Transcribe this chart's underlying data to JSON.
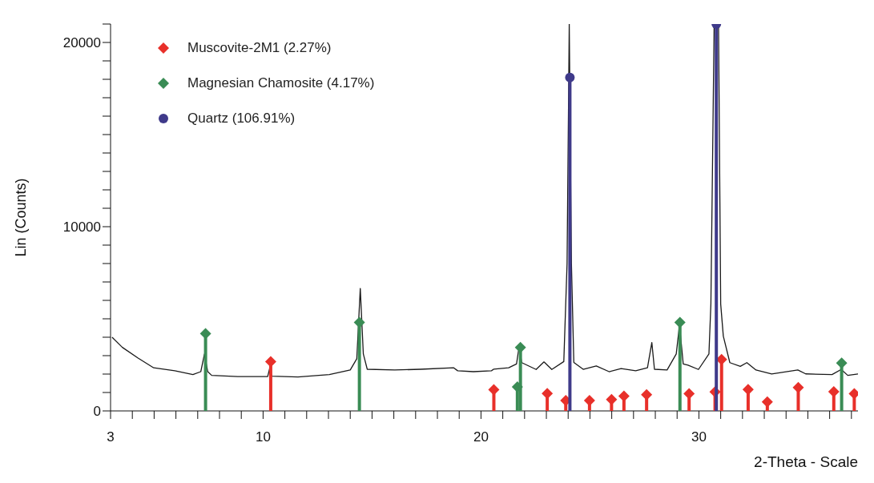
{
  "chart_data": {
    "type": "lollipop",
    "xlabel": "2-Theta - Scale",
    "ylabel": "Lin (Counts)",
    "xlim": [
      3,
      37.3
    ],
    "ylim": [
      0,
      21000
    ],
    "xticks": [
      3,
      {
        "value": 4,
        "label": null
      },
      {
        "value": 5,
        "label": null
      },
      {
        "value": 6,
        "label": null
      },
      {
        "value": 7,
        "label": null
      },
      {
        "value": 8,
        "label": null
      },
      {
        "value": 9,
        "label": null
      },
      10,
      {
        "value": 11,
        "label": null
      },
      {
        "value": 12,
        "label": null
      },
      {
        "value": 13,
        "label": null
      },
      {
        "value": 14,
        "label": null
      },
      {
        "value": 15,
        "label": null
      },
      {
        "value": 16,
        "label": null
      },
      {
        "value": 17,
        "label": null
      },
      {
        "value": 18,
        "label": null
      },
      {
        "value": 19,
        "label": null
      },
      20,
      {
        "value": 21,
        "label": null
      },
      {
        "value": 22,
        "label": null
      },
      {
        "value": 23,
        "label": null
      },
      {
        "value": 24,
        "label": null
      },
      {
        "value": 25,
        "label": null
      },
      {
        "value": 26,
        "label": null
      },
      {
        "value": 27,
        "label": null
      },
      {
        "value": 28,
        "label": null
      },
      {
        "value": 29,
        "label": null
      },
      30,
      {
        "value": 31,
        "label": null
      },
      {
        "value": 32,
        "label": null
      },
      {
        "value": 33,
        "label": null
      },
      {
        "value": 34,
        "label": null
      },
      {
        "value": 35,
        "label": null
      },
      {
        "value": 36,
        "label": null
      },
      {
        "value": 37,
        "label": null
      }
    ],
    "yticks": [
      0,
      {
        "value": 1000,
        "label": null
      },
      {
        "value": 2000,
        "label": null
      },
      {
        "value": 3000,
        "label": null
      },
      {
        "value": 4000,
        "label": null
      },
      {
        "value": 5000,
        "label": null
      },
      {
        "value": 6000,
        "label": null
      },
      {
        "value": 7000,
        "label": null
      },
      {
        "value": 8000,
        "label": null
      },
      {
        "value": 9000,
        "label": null
      },
      10000,
      {
        "value": 11000,
        "label": null
      },
      {
        "value": 12000,
        "label": null
      },
      {
        "value": 13000,
        "label": null
      },
      {
        "value": 14000,
        "label": null
      },
      {
        "value": 15000,
        "label": null
      },
      {
        "value": 16000,
        "label": null
      },
      {
        "value": 17000,
        "label": null
      },
      {
        "value": 18000,
        "label": null
      },
      {
        "value": 19000,
        "label": null
      },
      20000,
      {
        "value": 21000,
        "label": null
      }
    ],
    "legend": "top left",
    "series": [
      {
        "type": "line",
        "color": "#1a1a1a",
        "marker": "none",
        "x": [
          3.07,
          3.54,
          4.26,
          4.98,
          5.95,
          6.78,
          7.14,
          7.31,
          7.46,
          7.64,
          8.84,
          10.21,
          10.3,
          10.4,
          11.6,
          13.04,
          14.0,
          14.3,
          14.46,
          14.6,
          14.78,
          16.04,
          17.23,
          18.75,
          18.93,
          19.65,
          20.48,
          20.59,
          21.27,
          21.63,
          21.75,
          21.87,
          22.53,
          22.89,
          23.25,
          23.8,
          23.95,
          24.05,
          24.15,
          24.26,
          24.69,
          25.29,
          25.88,
          26.43,
          27.1,
          27.64,
          27.84,
          27.96,
          28.54,
          28.96,
          29.11,
          29.28,
          29.5,
          29.98,
          30.46,
          30.55,
          30.7,
          30.9,
          31.0,
          31.12,
          31.42,
          31.9,
          32.2,
          32.62,
          33.34,
          34.54,
          34.9,
          36.11,
          36.53,
          36.83,
          37.3
        ],
        "values": [
          4000,
          3450,
          2870,
          2340,
          2180,
          1970,
          2130,
          3090,
          2130,
          1930,
          1860,
          1860,
          2300,
          1890,
          1840,
          1970,
          2220,
          2830,
          6650,
          3090,
          2260,
          2220,
          2260,
          2340,
          2180,
          2130,
          2180,
          2270,
          2340,
          2550,
          3500,
          2620,
          2250,
          2660,
          2250,
          2680,
          8000,
          21000,
          8000,
          2630,
          2260,
          2440,
          2130,
          2300,
          2180,
          2340,
          3710,
          2260,
          2220,
          3090,
          4670,
          2550,
          2480,
          2250,
          3090,
          5800,
          21000,
          21000,
          5800,
          4060,
          2620,
          2420,
          2620,
          2220,
          2010,
          2220,
          2010,
          1970,
          2250,
          1930,
          2010
        ]
      },
      {
        "name": "Muscovite-2M1 (2.27%)",
        "color": "#e8302a",
        "marker": "diamond",
        "x": [
          10.35,
          20.59,
          23.04,
          23.89,
          24.98,
          25.99,
          26.56,
          27.6,
          29.55,
          30.74,
          31.04,
          32.26,
          33.14,
          34.56,
          36.19,
          37.13
        ],
        "values": [
          2670,
          1150,
          950,
          570,
          570,
          620,
          800,
          880,
          940,
          1030,
          2790,
          1160,
          490,
          1270,
          1040,
          940
        ]
      },
      {
        "name": "Magnesian Chamosite (4.17%)",
        "color": "#3a8c55",
        "marker": "diamond",
        "x": [
          7.36,
          14.42,
          21.67,
          21.81,
          29.13,
          36.55
        ],
        "values": [
          4200,
          4800,
          1300,
          3450,
          4800,
          2600
        ]
      },
      {
        "name": "Quartz (106.91%)",
        "color": "#3f3a8a",
        "marker": "circle",
        "x": [
          24.08,
          30.8
        ],
        "values": [
          18100,
          21000
        ]
      }
    ]
  }
}
